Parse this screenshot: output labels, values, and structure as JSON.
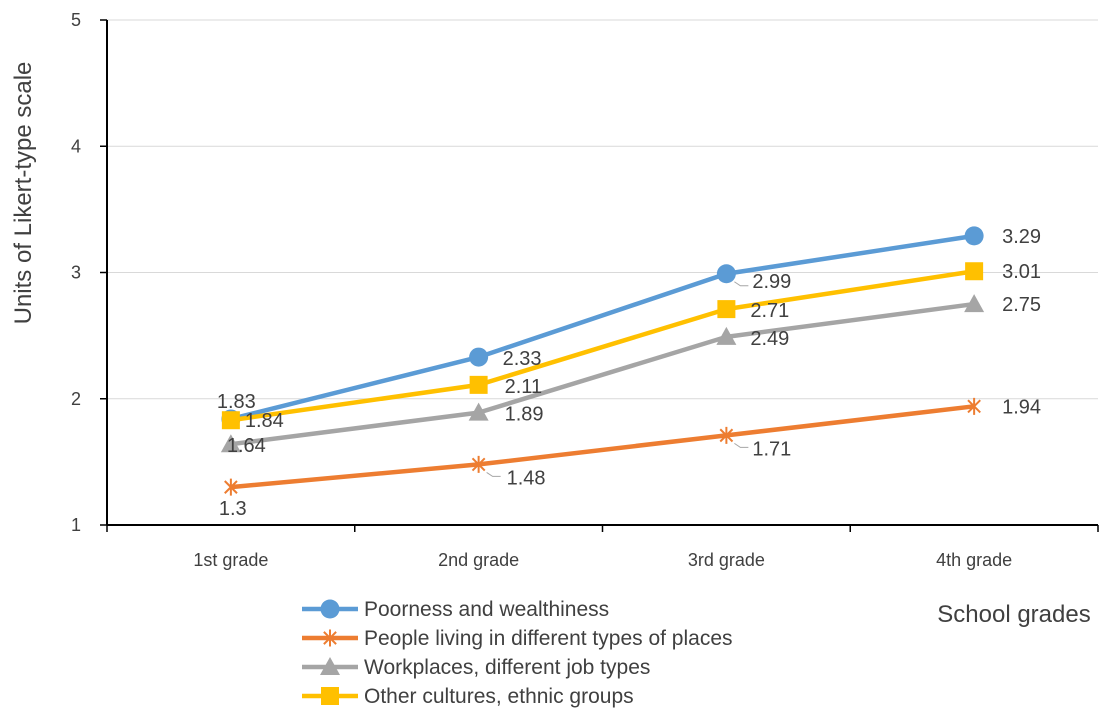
{
  "chart_data": {
    "type": "line",
    "xlabel": "School grades",
    "ylabel": "Units of Likert-type scale",
    "ylim": [
      1,
      5
    ],
    "yticks": [
      "1",
      "2",
      "3",
      "4",
      "5"
    ],
    "grid": true,
    "legend_position": "bottom",
    "categories": [
      "1st grade",
      "2nd grade",
      "3rd grade",
      "4th grade"
    ],
    "series": [
      {
        "name": "Poorness and wealthiness",
        "values": [
          1.84,
          2.33,
          2.99,
          3.29
        ],
        "labels": [
          "1.84",
          "2.33",
          "2.99",
          "3.29"
        ],
        "color": "#5b9bd5",
        "marker": "circle"
      },
      {
        "name": "People living in different types of places",
        "values": [
          1.3,
          1.48,
          1.71,
          1.94
        ],
        "labels": [
          "1.3",
          "1.48",
          "1.71",
          "1.94"
        ],
        "color": "#ed7d31",
        "marker": "star"
      },
      {
        "name": "Workplaces, different job types",
        "values": [
          1.64,
          1.89,
          2.49,
          2.75
        ],
        "labels": [
          "1.64",
          "1.89",
          "2.49",
          "2.75"
        ],
        "color": "#a5a5a5",
        "marker": "triangle"
      },
      {
        "name": "Other cultures, ethnic groups",
        "values": [
          1.83,
          2.11,
          2.71,
          3.01
        ],
        "labels": [
          "1.83",
          "2.11",
          "2.71",
          "3.01"
        ],
        "color": "#ffc000",
        "marker": "square"
      }
    ]
  }
}
